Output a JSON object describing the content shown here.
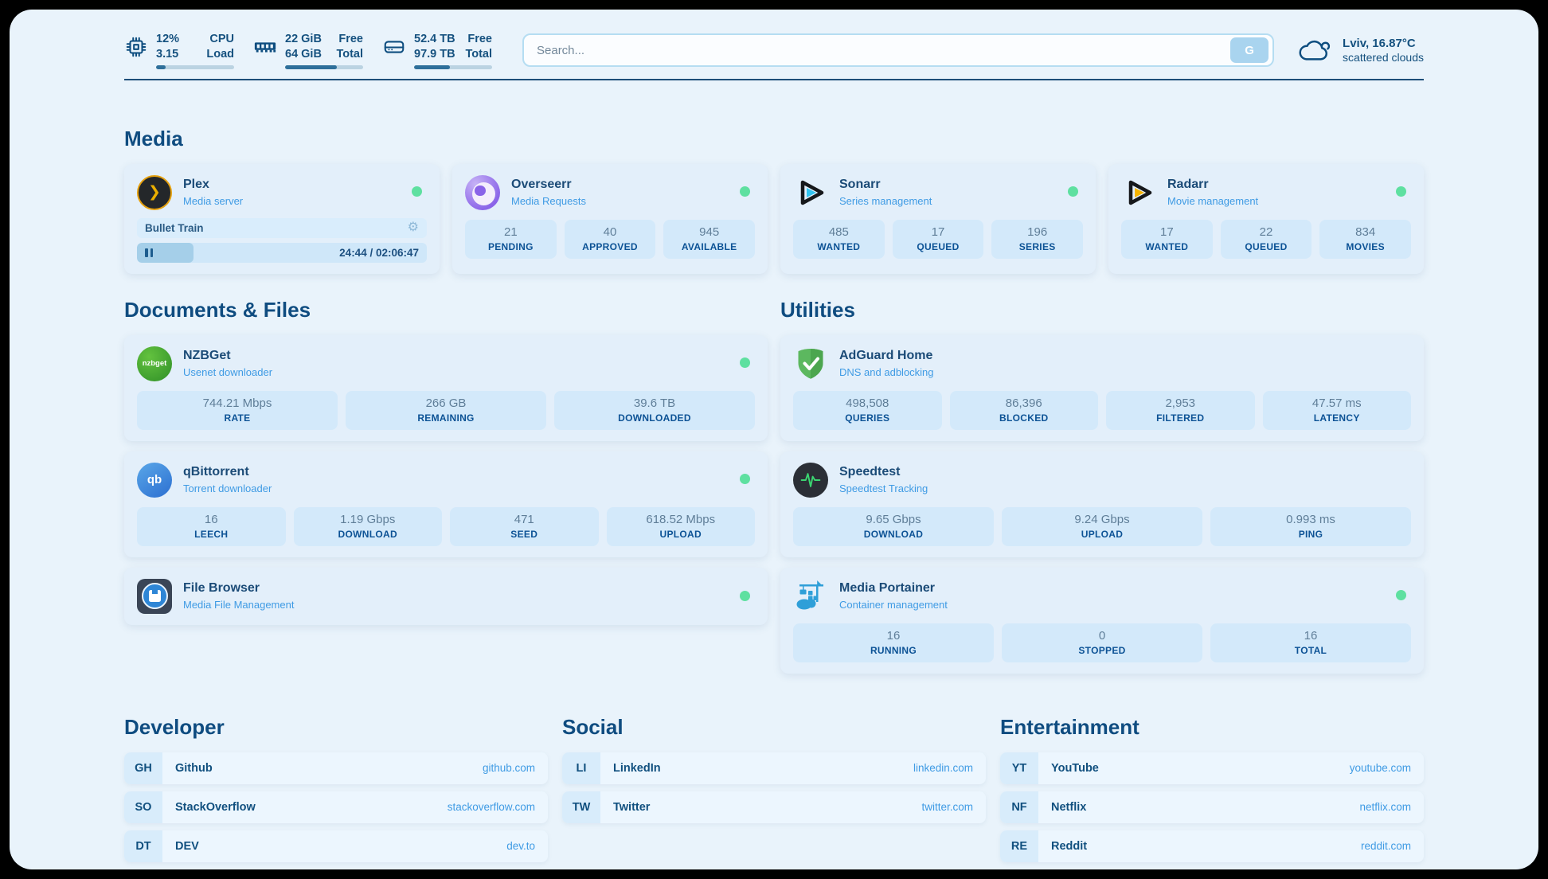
{
  "topbar": {
    "cpu": {
      "value": "12%",
      "sub": "3.15",
      "label_top": "CPU",
      "label_bottom": "Load",
      "percent": 12
    },
    "ram": {
      "value": "22 GiB",
      "sub": "64 GiB",
      "label_top": "Free",
      "label_bottom": "Total",
      "percent": 66
    },
    "disk": {
      "value": "52.4 TB",
      "sub": "97.9 TB",
      "label_top": "Free",
      "label_bottom": "Total",
      "percent": 46
    },
    "search": {
      "placeholder": "Search...",
      "button_label": "G"
    },
    "weather": {
      "location": "Lviv, 16.87°C",
      "condition": "scattered clouds"
    }
  },
  "icons": {
    "plex_chevron": "❯",
    "settings_gear": "⚙",
    "nzbget_text": "nzbget",
    "qbittorrent_text": "qb"
  },
  "sections": {
    "media": {
      "title": "Media",
      "apps": [
        {
          "name": "Plex",
          "desc": "Media server",
          "online": true,
          "player": {
            "title": "Bullet Train",
            "time_display": "24:44 / 02:06:47",
            "progress_percent": 19.5
          }
        },
        {
          "name": "Overseerr",
          "desc": "Media Requests",
          "online": true,
          "stats": [
            {
              "value": "21",
              "label": "PENDING"
            },
            {
              "value": "40",
              "label": "APPROVED"
            },
            {
              "value": "945",
              "label": "AVAILABLE"
            }
          ]
        },
        {
          "name": "Sonarr",
          "desc": "Series management",
          "online": true,
          "stats": [
            {
              "value": "485",
              "label": "WANTED"
            },
            {
              "value": "17",
              "label": "QUEUED"
            },
            {
              "value": "196",
              "label": "SERIES"
            }
          ]
        },
        {
          "name": "Radarr",
          "desc": "Movie management",
          "online": true,
          "stats": [
            {
              "value": "17",
              "label": "WANTED"
            },
            {
              "value": "22",
              "label": "QUEUED"
            },
            {
              "value": "834",
              "label": "MOVIES"
            }
          ]
        }
      ]
    },
    "documents": {
      "title": "Documents & Files",
      "apps": [
        {
          "name": "NZBGet",
          "desc": "Usenet downloader",
          "online": true,
          "stats": [
            {
              "value": "744.21 Mbps",
              "label": "RATE"
            },
            {
              "value": "266 GB",
              "label": "REMAINING"
            },
            {
              "value": "39.6 TB",
              "label": "DOWNLOADED"
            }
          ]
        },
        {
          "name": "qBittorrent",
          "desc": "Torrent downloader",
          "online": true,
          "stats": [
            {
              "value": "16",
              "label": "LEECH"
            },
            {
              "value": "1.19 Gbps",
              "label": "DOWNLOAD"
            },
            {
              "value": "471",
              "label": "SEED"
            },
            {
              "value": "618.52 Mbps",
              "label": "UPLOAD"
            }
          ]
        },
        {
          "name": "File Browser",
          "desc": "Media File Management",
          "online": true
        }
      ]
    },
    "utilities": {
      "title": "Utilities",
      "apps": [
        {
          "name": "AdGuard Home",
          "desc": "DNS and adblocking",
          "stats": [
            {
              "value": "498,508",
              "label": "QUERIES"
            },
            {
              "value": "86,396",
              "label": "BLOCKED"
            },
            {
              "value": "2,953",
              "label": "FILTERED"
            },
            {
              "value": "47.57 ms",
              "label": "LATENCY"
            }
          ]
        },
        {
          "name": "Speedtest",
          "desc": "Speedtest Tracking",
          "stats": [
            {
              "value": "9.65 Gbps",
              "label": "DOWNLOAD"
            },
            {
              "value": "9.24 Gbps",
              "label": "UPLOAD"
            },
            {
              "value": "0.993 ms",
              "label": "PING"
            }
          ]
        },
        {
          "name": "Media Portainer",
          "desc": "Container management",
          "online": true,
          "stats": [
            {
              "value": "16",
              "label": "RUNNING"
            },
            {
              "value": "0",
              "label": "STOPPED"
            },
            {
              "value": "16",
              "label": "TOTAL"
            }
          ]
        }
      ]
    },
    "bookmarks": [
      {
        "title": "Developer",
        "links": [
          {
            "abbr": "GH",
            "name": "Github",
            "url": "github.com"
          },
          {
            "abbr": "SO",
            "name": "StackOverflow",
            "url": "stackoverflow.com"
          },
          {
            "abbr": "DT",
            "name": "DEV",
            "url": "dev.to"
          }
        ]
      },
      {
        "title": "Social",
        "links": [
          {
            "abbr": "LI",
            "name": "LinkedIn",
            "url": "linkedin.com"
          },
          {
            "abbr": "TW",
            "name": "Twitter",
            "url": "twitter.com"
          }
        ]
      },
      {
        "title": "Entertainment",
        "links": [
          {
            "abbr": "YT",
            "name": "YouTube",
            "url": "youtube.com"
          },
          {
            "abbr": "NF",
            "name": "Netflix",
            "url": "netflix.com"
          },
          {
            "abbr": "RE",
            "name": "Reddit",
            "url": "reddit.com"
          }
        ]
      }
    ]
  },
  "colors": {
    "page_background": "#e9f3fb",
    "accent_dark_blue": "#0f4c80",
    "link_blue": "#3f9be4",
    "status_online_green": "#5ee0a0",
    "stat_tile_blue": "#d3e9fa",
    "progress_fill": "#2e6f9a"
  }
}
